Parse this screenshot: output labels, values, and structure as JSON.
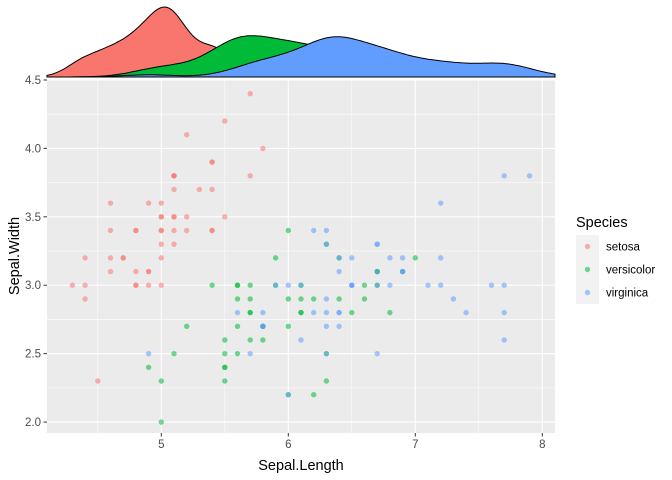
{
  "chart_data": {
    "type": "scatter",
    "title": "",
    "xlabel": "Sepal.Length",
    "ylabel": "Sepal.Width",
    "xlim": [
      4.1,
      8.1
    ],
    "ylim": [
      1.92,
      4.5
    ],
    "x_ticks": [
      5,
      6,
      7,
      8
    ],
    "y_ticks": [
      2.0,
      2.5,
      3.0,
      3.5,
      4.0,
      4.5
    ],
    "y_tick_labels": [
      "2.0",
      "2.5",
      "3.0",
      "3.5",
      "4.0",
      "4.5"
    ],
    "grid": true,
    "legend_position": "right",
    "marginal": "density (top)",
    "legend": {
      "title": "Species"
    },
    "series": [
      {
        "name": "setosa",
        "color": "#F8766D",
        "points": [
          [
            5.1,
            3.5
          ],
          [
            4.9,
            3.0
          ],
          [
            4.7,
            3.2
          ],
          [
            4.6,
            3.1
          ],
          [
            5.0,
            3.6
          ],
          [
            5.4,
            3.9
          ],
          [
            4.6,
            3.4
          ],
          [
            5.0,
            3.4
          ],
          [
            4.4,
            2.9
          ],
          [
            4.9,
            3.1
          ],
          [
            5.4,
            3.7
          ],
          [
            4.8,
            3.4
          ],
          [
            4.8,
            3.0
          ],
          [
            4.3,
            3.0
          ],
          [
            5.8,
            4.0
          ],
          [
            5.7,
            4.4
          ],
          [
            5.4,
            3.9
          ],
          [
            5.1,
            3.5
          ],
          [
            5.7,
            3.8
          ],
          [
            5.1,
            3.8
          ],
          [
            5.4,
            3.4
          ],
          [
            5.1,
            3.7
          ],
          [
            4.6,
            3.6
          ],
          [
            5.1,
            3.3
          ],
          [
            4.8,
            3.4
          ],
          [
            5.0,
            3.0
          ],
          [
            5.0,
            3.4
          ],
          [
            5.2,
            3.5
          ],
          [
            5.2,
            3.4
          ],
          [
            4.7,
            3.2
          ],
          [
            4.8,
            3.1
          ],
          [
            5.4,
            3.4
          ],
          [
            5.2,
            4.1
          ],
          [
            5.5,
            4.2
          ],
          [
            4.9,
            3.1
          ],
          [
            5.0,
            3.2
          ],
          [
            5.5,
            3.5
          ],
          [
            4.9,
            3.6
          ],
          [
            4.4,
            3.0
          ],
          [
            5.1,
            3.4
          ],
          [
            5.0,
            3.5
          ],
          [
            4.5,
            2.3
          ],
          [
            4.4,
            3.2
          ],
          [
            5.0,
            3.5
          ],
          [
            5.1,
            3.8
          ],
          [
            4.8,
            3.0
          ],
          [
            5.1,
            3.8
          ],
          [
            4.6,
            3.2
          ],
          [
            5.3,
            3.7
          ],
          [
            5.0,
            3.3
          ]
        ]
      },
      {
        "name": "versicolor",
        "color": "#00BA38",
        "points": [
          [
            7.0,
            3.2
          ],
          [
            6.4,
            3.2
          ],
          [
            6.9,
            3.1
          ],
          [
            5.5,
            2.3
          ],
          [
            6.5,
            2.8
          ],
          [
            5.7,
            2.8
          ],
          [
            6.3,
            3.3
          ],
          [
            4.9,
            2.4
          ],
          [
            6.6,
            2.9
          ],
          [
            5.2,
            2.7
          ],
          [
            5.0,
            2.0
          ],
          [
            5.9,
            3.0
          ],
          [
            6.0,
            2.2
          ],
          [
            6.1,
            2.9
          ],
          [
            5.6,
            2.9
          ],
          [
            6.7,
            3.1
          ],
          [
            5.6,
            3.0
          ],
          [
            5.8,
            2.7
          ],
          [
            6.2,
            2.2
          ],
          [
            5.6,
            2.5
          ],
          [
            5.9,
            3.2
          ],
          [
            6.1,
            2.8
          ],
          [
            6.3,
            2.5
          ],
          [
            6.1,
            2.8
          ],
          [
            6.4,
            2.9
          ],
          [
            6.6,
            3.0
          ],
          [
            6.8,
            2.8
          ],
          [
            6.7,
            3.0
          ],
          [
            6.0,
            2.9
          ],
          [
            5.7,
            2.6
          ],
          [
            5.5,
            2.4
          ],
          [
            5.5,
            2.4
          ],
          [
            5.8,
            2.7
          ],
          [
            6.0,
            2.7
          ],
          [
            5.4,
            3.0
          ],
          [
            6.0,
            3.4
          ],
          [
            6.7,
            3.1
          ],
          [
            6.3,
            2.3
          ],
          [
            5.6,
            3.0
          ],
          [
            5.5,
            2.5
          ],
          [
            5.5,
            2.6
          ],
          [
            6.1,
            3.0
          ],
          [
            5.8,
            2.6
          ],
          [
            5.0,
            2.3
          ],
          [
            5.6,
            2.7
          ],
          [
            5.7,
            3.0
          ],
          [
            5.7,
            2.9
          ],
          [
            6.2,
            2.9
          ],
          [
            5.1,
            2.5
          ],
          [
            5.7,
            2.8
          ]
        ]
      },
      {
        "name": "virginica",
        "color": "#619CFF",
        "points": [
          [
            6.3,
            3.3
          ],
          [
            5.8,
            2.7
          ],
          [
            7.1,
            3.0
          ],
          [
            6.3,
            2.9
          ],
          [
            6.5,
            3.0
          ],
          [
            7.6,
            3.0
          ],
          [
            4.9,
            2.5
          ],
          [
            7.3,
            2.9
          ],
          [
            6.7,
            2.5
          ],
          [
            7.2,
            3.6
          ],
          [
            6.5,
            3.2
          ],
          [
            6.4,
            2.7
          ],
          [
            6.8,
            3.0
          ],
          [
            5.7,
            2.5
          ],
          [
            5.8,
            2.8
          ],
          [
            6.4,
            3.2
          ],
          [
            6.5,
            3.0
          ],
          [
            7.7,
            3.8
          ],
          [
            7.7,
            2.6
          ],
          [
            6.0,
            2.2
          ],
          [
            6.9,
            3.2
          ],
          [
            5.6,
            2.8
          ],
          [
            7.7,
            2.8
          ],
          [
            6.3,
            2.7
          ],
          [
            6.7,
            3.3
          ],
          [
            7.2,
            3.2
          ],
          [
            6.2,
            2.8
          ],
          [
            6.1,
            3.0
          ],
          [
            6.4,
            2.8
          ],
          [
            7.2,
            3.0
          ],
          [
            7.4,
            2.8
          ],
          [
            7.9,
            3.8
          ],
          [
            6.4,
            2.8
          ],
          [
            6.3,
            2.8
          ],
          [
            6.1,
            2.6
          ],
          [
            7.7,
            3.0
          ],
          [
            6.3,
            3.4
          ],
          [
            6.4,
            3.1
          ],
          [
            6.0,
            3.0
          ],
          [
            6.9,
            3.1
          ],
          [
            6.7,
            3.1
          ],
          [
            6.9,
            3.1
          ],
          [
            5.8,
            2.7
          ],
          [
            6.8,
            3.2
          ],
          [
            6.7,
            3.3
          ],
          [
            6.7,
            3.0
          ],
          [
            6.3,
            2.5
          ],
          [
            6.5,
            3.0
          ],
          [
            6.2,
            3.4
          ],
          [
            5.9,
            3.0
          ]
        ]
      }
    ]
  }
}
